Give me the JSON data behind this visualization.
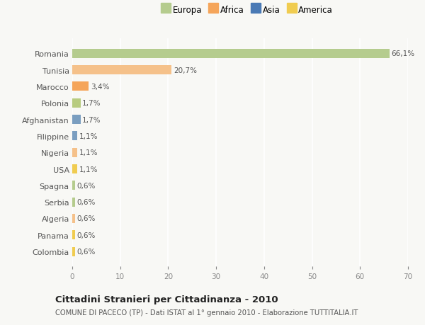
{
  "categories": [
    "Romania",
    "Tunisia",
    "Marocco",
    "Polonia",
    "Afghanistan",
    "Filippine",
    "Nigeria",
    "USA",
    "Spagna",
    "Serbia",
    "Algeria",
    "Panama",
    "Colombia"
  ],
  "values": [
    66.1,
    20.7,
    3.4,
    1.7,
    1.7,
    1.1,
    1.1,
    1.1,
    0.6,
    0.6,
    0.6,
    0.6,
    0.6
  ],
  "labels": [
    "66,1%",
    "20,7%",
    "3,4%",
    "1,7%",
    "1,7%",
    "1,1%",
    "1,1%",
    "1,1%",
    "0,6%",
    "0,6%",
    "0,6%",
    "0,6%",
    "0,6%"
  ],
  "colors": [
    "#b5cc8e",
    "#f5c18a",
    "#f5a55a",
    "#b8cc80",
    "#7a9ec0",
    "#7a9ec0",
    "#f5c18a",
    "#f0cc50",
    "#b5cc8e",
    "#b5cc8e",
    "#f5c18a",
    "#f0cc50",
    "#f0cc50"
  ],
  "legend_labels": [
    "Europa",
    "Africa",
    "Asia",
    "America"
  ],
  "legend_colors": [
    "#b5cc8e",
    "#f5a55a",
    "#4a7ab5",
    "#f0cc50"
  ],
  "title": "Cittadini Stranieri per Cittadinanza - 2010",
  "subtitle": "COMUNE DI PACECO (TP) - Dati ISTAT al 1° gennaio 2010 - Elaborazione TUTTITALIA.IT",
  "xlim": [
    0,
    70
  ],
  "xticks": [
    0,
    10,
    20,
    30,
    40,
    50,
    60,
    70
  ],
  "background_color": "#f8f8f5",
  "grid_color": "#ffffff",
  "bar_height": 0.55
}
